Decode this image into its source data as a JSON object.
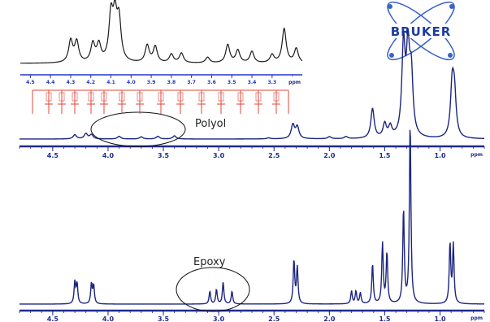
{
  "brand": {
    "logo_text": "BRUKER"
  },
  "colors": {
    "spectrum": "#1c2580",
    "inset_trace": "#1a1a1a",
    "inset_axis": "#2236c8",
    "structure": "#e0443a",
    "axis": "#1f2b8f"
  },
  "chart_data": [
    {
      "type": "line",
      "panel": "polyol",
      "annotation": "Polyol",
      "xlabel": "ppm",
      "xlim": [
        4.8,
        0.6
      ],
      "x_ticks": [
        "4.5",
        "4.0",
        "3.5",
        "3.0",
        "2.5",
        "2.0",
        "1.5",
        "1.0"
      ],
      "peaks": [
        {
          "x": 4.3,
          "y": 0.04
        },
        {
          "x": 4.2,
          "y": 0.05
        },
        {
          "x": 4.15,
          "y": 0.04
        },
        {
          "x": 3.9,
          "y": 0.025
        },
        {
          "x": 3.7,
          "y": 0.02
        },
        {
          "x": 3.55,
          "y": 0.025
        },
        {
          "x": 3.4,
          "y": 0.03
        },
        {
          "x": 2.55,
          "y": 0.01
        },
        {
          "x": 2.33,
          "y": 0.13
        },
        {
          "x": 2.29,
          "y": 0.11
        },
        {
          "x": 2.0,
          "y": 0.02
        },
        {
          "x": 1.85,
          "y": 0.02
        },
        {
          "x": 1.61,
          "y": 0.28
        },
        {
          "x": 1.5,
          "y": 0.13
        },
        {
          "x": 1.45,
          "y": 0.1
        },
        {
          "x": 1.33,
          "y": 0.85
        },
        {
          "x": 1.29,
          "y": 0.75
        },
        {
          "x": 1.26,
          "y": 0.55
        },
        {
          "x": 0.89,
          "y": 0.48
        },
        {
          "x": 0.87,
          "y": 0.38
        }
      ]
    },
    {
      "type": "line",
      "panel": "polyol-inset",
      "xlabel": "ppm",
      "xlim": [
        4.55,
        3.15
      ],
      "x_ticks": [
        "4.5",
        "4.4",
        "4.3",
        "4.2",
        "4.1",
        "4.0",
        "3.9",
        "3.8",
        "3.7",
        "3.6",
        "3.5",
        "3.4",
        "3.3"
      ],
      "peaks": [
        {
          "x": 4.3,
          "y": 0.38
        },
        {
          "x": 4.27,
          "y": 0.36
        },
        {
          "x": 4.19,
          "y": 0.32
        },
        {
          "x": 4.16,
          "y": 0.3
        },
        {
          "x": 4.1,
          "y": 0.78
        },
        {
          "x": 4.08,
          "y": 0.72
        },
        {
          "x": 4.06,
          "y": 0.7
        },
        {
          "x": 3.92,
          "y": 0.3
        },
        {
          "x": 3.88,
          "y": 0.28
        },
        {
          "x": 3.8,
          "y": 0.15
        },
        {
          "x": 3.75,
          "y": 0.17
        },
        {
          "x": 3.62,
          "y": 0.1
        },
        {
          "x": 3.52,
          "y": 0.32
        },
        {
          "x": 3.47,
          "y": 0.22
        },
        {
          "x": 3.4,
          "y": 0.2
        },
        {
          "x": 3.3,
          "y": 0.14
        },
        {
          "x": 3.24,
          "y": 0.6
        },
        {
          "x": 3.18,
          "y": 0.25
        }
      ]
    },
    {
      "type": "line",
      "panel": "epoxy",
      "annotation": "Epoxy",
      "xlabel": "ppm",
      "xlim": [
        4.8,
        0.6
      ],
      "x_ticks": [
        "4.5",
        "4.0",
        "3.5",
        "3.0",
        "2.5",
        "2.0",
        "1.5",
        "1.0"
      ],
      "peaks": [
        {
          "x": 4.3,
          "y": 0.12
        },
        {
          "x": 4.28,
          "y": 0.11
        },
        {
          "x": 4.15,
          "y": 0.11
        },
        {
          "x": 4.13,
          "y": 0.1
        },
        {
          "x": 3.08,
          "y": 0.07
        },
        {
          "x": 3.02,
          "y": 0.08
        },
        {
          "x": 2.96,
          "y": 0.12
        },
        {
          "x": 2.88,
          "y": 0.07
        },
        {
          "x": 2.32,
          "y": 0.24
        },
        {
          "x": 2.29,
          "y": 0.2
        },
        {
          "x": 1.8,
          "y": 0.07
        },
        {
          "x": 1.76,
          "y": 0.07
        },
        {
          "x": 1.72,
          "y": 0.06
        },
        {
          "x": 1.61,
          "y": 0.22
        },
        {
          "x": 1.52,
          "y": 0.33
        },
        {
          "x": 1.48,
          "y": 0.28
        },
        {
          "x": 1.33,
          "y": 0.52
        },
        {
          "x": 1.27,
          "y": 1.0
        },
        {
          "x": 0.91,
          "y": 0.33
        },
        {
          "x": 0.88,
          "y": 0.32
        }
      ]
    }
  ]
}
